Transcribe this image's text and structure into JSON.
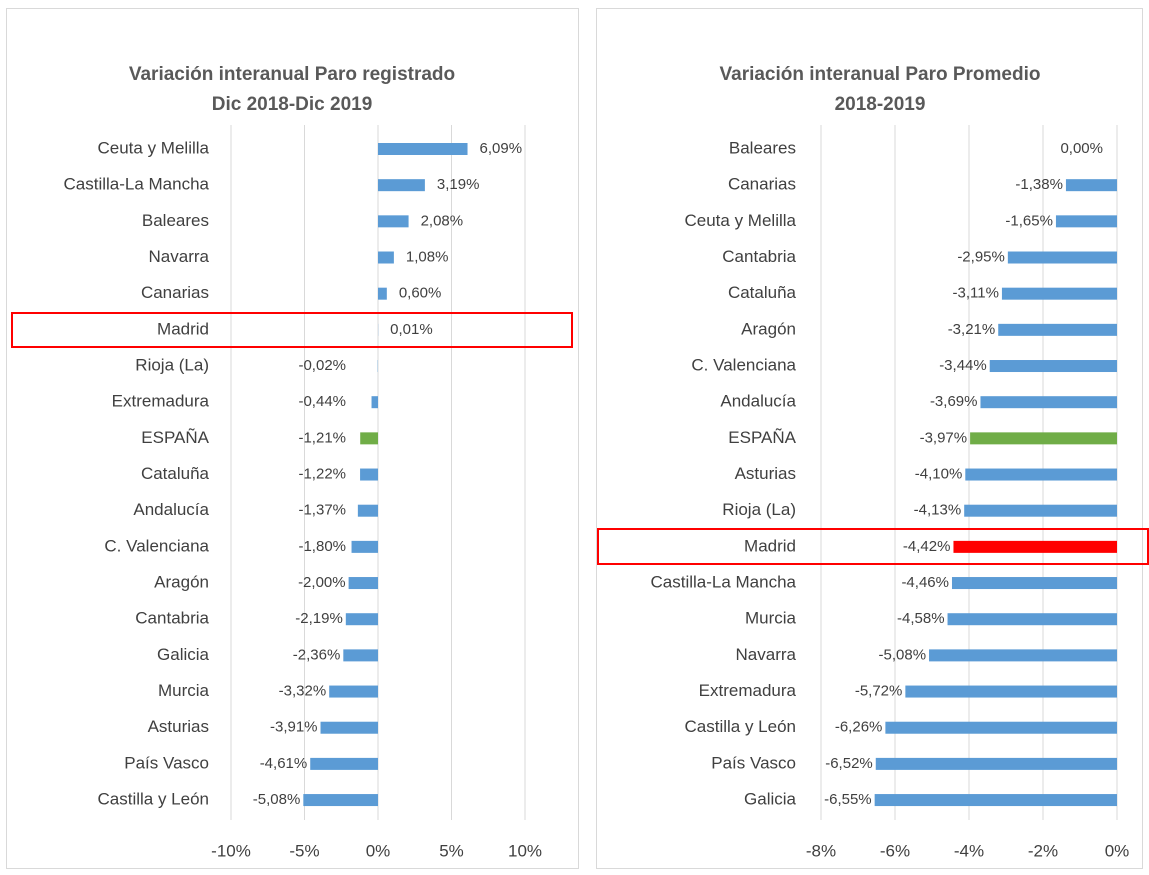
{
  "chart_data": [
    {
      "type": "bar",
      "orientation": "horizontal",
      "title": [
        "Variación interanual Paro registrado",
        "Dic 2018-Dic 2019"
      ],
      "categories": [
        "Ceuta y Melilla",
        "Castilla-La Mancha",
        "Baleares",
        "Navarra",
        "Canarias",
        "Madrid",
        "Rioja (La)",
        "Extremadura",
        "ESPAÑA",
        "Cataluña",
        "Andalucía",
        "C. Valenciana",
        "Aragón",
        "Cantabria",
        "Galicia",
        "Murcia",
        "Asturias",
        "País Vasco",
        "Castilla y León"
      ],
      "values": [
        6.09,
        3.19,
        2.08,
        1.08,
        0.6,
        0.01,
        -0.02,
        -0.44,
        -1.21,
        -1.22,
        -1.37,
        -1.8,
        -2.0,
        -2.19,
        -2.36,
        -3.32,
        -3.91,
        -4.61,
        -5.08
      ],
      "value_labels": [
        "6,09%",
        "3,19%",
        "2,08%",
        "1,08%",
        "0,60%",
        "0,01%",
        "-0,02%",
        "-0,44%",
        "-1,21%",
        "-1,22%",
        "-1,37%",
        "-1,80%",
        "-2,00%",
        "-2,19%",
        "-2,36%",
        "-3,32%",
        "-3,91%",
        "-4,61%",
        "-5,08%"
      ],
      "colors": [
        "#5b9bd5",
        "#5b9bd5",
        "#5b9bd5",
        "#5b9bd5",
        "#5b9bd5",
        "#5b9bd5",
        "#5b9bd5",
        "#5b9bd5",
        "#70ad47",
        "#5b9bd5",
        "#5b9bd5",
        "#5b9bd5",
        "#5b9bd5",
        "#5b9bd5",
        "#5b9bd5",
        "#5b9bd5",
        "#5b9bd5",
        "#5b9bd5",
        "#5b9bd5"
      ],
      "xlim": [
        -10,
        10
      ],
      "xticks": [
        {
          "value": -10,
          "label": "-10%"
        },
        {
          "value": -5,
          "label": "-5%"
        },
        {
          "value": 0,
          "label": "0%"
        },
        {
          "value": 5,
          "label": "5%"
        },
        {
          "value": 10,
          "label": "10%"
        }
      ],
      "grid": true
    },
    {
      "type": "bar",
      "orientation": "horizontal",
      "title": [
        "Variación interanual Paro Promedio",
        "2018-2019"
      ],
      "categories": [
        "Baleares",
        "Canarias",
        "Ceuta y Melilla",
        "Cantabria",
        "Cataluña",
        "Aragón",
        "C. Valenciana",
        "Andalucía",
        "ESPAÑA",
        "Asturias",
        "Rioja (La)",
        "Madrid",
        "Castilla-La Mancha",
        "Murcia",
        "Navarra",
        "Extremadura",
        "Castilla y León",
        "País Vasco",
        "Galicia"
      ],
      "values": [
        0.0,
        -1.38,
        -1.65,
        -2.95,
        -3.11,
        -3.21,
        -3.44,
        -3.69,
        -3.97,
        -4.1,
        -4.13,
        -4.42,
        -4.46,
        -4.58,
        -5.08,
        -5.72,
        -6.26,
        -6.52,
        -6.55
      ],
      "value_labels": [
        "0,00%",
        "-1,38%",
        "-1,65%",
        "-2,95%",
        "-3,11%",
        "-3,21%",
        "-3,44%",
        "-3,69%",
        "-3,97%",
        "-4,10%",
        "-4,13%",
        "-4,42%",
        "-4,46%",
        "-4,58%",
        "-5,08%",
        "-5,72%",
        "-6,26%",
        "-6,52%",
        "-6,55%"
      ],
      "colors": [
        "#5b9bd5",
        "#5b9bd5",
        "#5b9bd5",
        "#5b9bd5",
        "#5b9bd5",
        "#5b9bd5",
        "#5b9bd5",
        "#5b9bd5",
        "#70ad47",
        "#5b9bd5",
        "#5b9bd5",
        "#ff0000",
        "#5b9bd5",
        "#5b9bd5",
        "#5b9bd5",
        "#5b9bd5",
        "#5b9bd5",
        "#5b9bd5",
        "#5b9bd5"
      ],
      "xlim": [
        -8,
        0
      ],
      "xticks": [
        {
          "value": -8,
          "label": "-8%"
        },
        {
          "value": -6,
          "label": "-6%"
        },
        {
          "value": -4,
          "label": "-4%"
        },
        {
          "value": -2,
          "label": "-2%"
        },
        {
          "value": 0,
          "label": "0%"
        }
      ],
      "grid": true
    }
  ]
}
